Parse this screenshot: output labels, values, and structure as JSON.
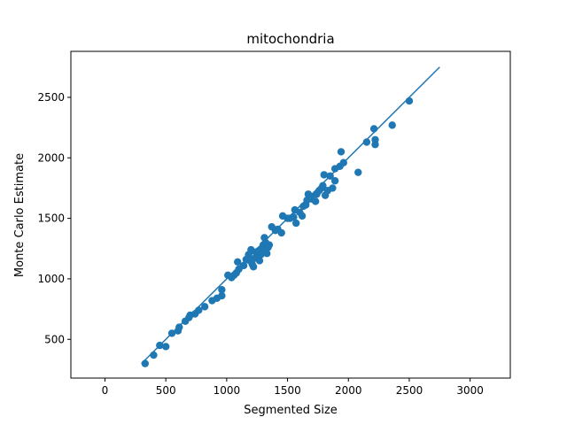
{
  "chart_data": {
    "type": "scatter",
    "title": "mitochondria",
    "xlabel": "Segmented Size",
    "ylabel": "Monte Carlo Estimate",
    "xlim": [
      -280,
      3330
    ],
    "ylim": [
      180,
      2880
    ],
    "xticks": [
      0,
      500,
      1000,
      1500,
      2000,
      2500,
      3000
    ],
    "yticks": [
      500,
      1000,
      1500,
      2000,
      2500
    ],
    "grid": false,
    "legend": "none",
    "colors": {
      "points": "#1f77b4",
      "line": "#1f77b4"
    },
    "reference_line": {
      "x": [
        300,
        2750
      ],
      "y": [
        300,
        2750
      ]
    },
    "points": [
      [
        330,
        300
      ],
      [
        400,
        370
      ],
      [
        450,
        450
      ],
      [
        500,
        440
      ],
      [
        550,
        550
      ],
      [
        600,
        570
      ],
      [
        610,
        600
      ],
      [
        660,
        650
      ],
      [
        690,
        680
      ],
      [
        700,
        700
      ],
      [
        740,
        710
      ],
      [
        770,
        740
      ],
      [
        820,
        770
      ],
      [
        880,
        820
      ],
      [
        920,
        840
      ],
      [
        960,
        860
      ],
      [
        960,
        910
      ],
      [
        1010,
        1030
      ],
      [
        1040,
        1010
      ],
      [
        1060,
        1030
      ],
      [
        1080,
        1050
      ],
      [
        1100,
        1080
      ],
      [
        1090,
        1140
      ],
      [
        1140,
        1110
      ],
      [
        1160,
        1160
      ],
      [
        1180,
        1200
      ],
      [
        1190,
        1150
      ],
      [
        1200,
        1240
      ],
      [
        1210,
        1120
      ],
      [
        1220,
        1100
      ],
      [
        1230,
        1170
      ],
      [
        1240,
        1220
      ],
      [
        1250,
        1180
      ],
      [
        1260,
        1230
      ],
      [
        1270,
        1150
      ],
      [
        1280,
        1200
      ],
      [
        1290,
        1250
      ],
      [
        1300,
        1280
      ],
      [
        1310,
        1230
      ],
      [
        1320,
        1300
      ],
      [
        1330,
        1210
      ],
      [
        1340,
        1260
      ],
      [
        1350,
        1280
      ],
      [
        1310,
        1340
      ],
      [
        1370,
        1430
      ],
      [
        1400,
        1400
      ],
      [
        1420,
        1410
      ],
      [
        1450,
        1380
      ],
      [
        1460,
        1520
      ],
      [
        1500,
        1500
      ],
      [
        1520,
        1500
      ],
      [
        1550,
        1510
      ],
      [
        1560,
        1570
      ],
      [
        1570,
        1460
      ],
      [
        1600,
        1550
      ],
      [
        1620,
        1520
      ],
      [
        1630,
        1600
      ],
      [
        1650,
        1610
      ],
      [
        1660,
        1650
      ],
      [
        1670,
        1700
      ],
      [
        1690,
        1680
      ],
      [
        1700,
        1660
      ],
      [
        1730,
        1640
      ],
      [
        1740,
        1700
      ],
      [
        1760,
        1730
      ],
      [
        1780,
        1750
      ],
      [
        1790,
        1770
      ],
      [
        1800,
        1860
      ],
      [
        1810,
        1690
      ],
      [
        1830,
        1730
      ],
      [
        1850,
        1850
      ],
      [
        1870,
        1750
      ],
      [
        1890,
        1810
      ],
      [
        1890,
        1910
      ],
      [
        1930,
        1930
      ],
      [
        1940,
        2050
      ],
      [
        1960,
        1960
      ],
      [
        2080,
        1880
      ],
      [
        2150,
        2130
      ],
      [
        2210,
        2240
      ],
      [
        2220,
        2150
      ],
      [
        2220,
        2110
      ],
      [
        2360,
        2270
      ],
      [
        2500,
        2470
      ]
    ]
  }
}
